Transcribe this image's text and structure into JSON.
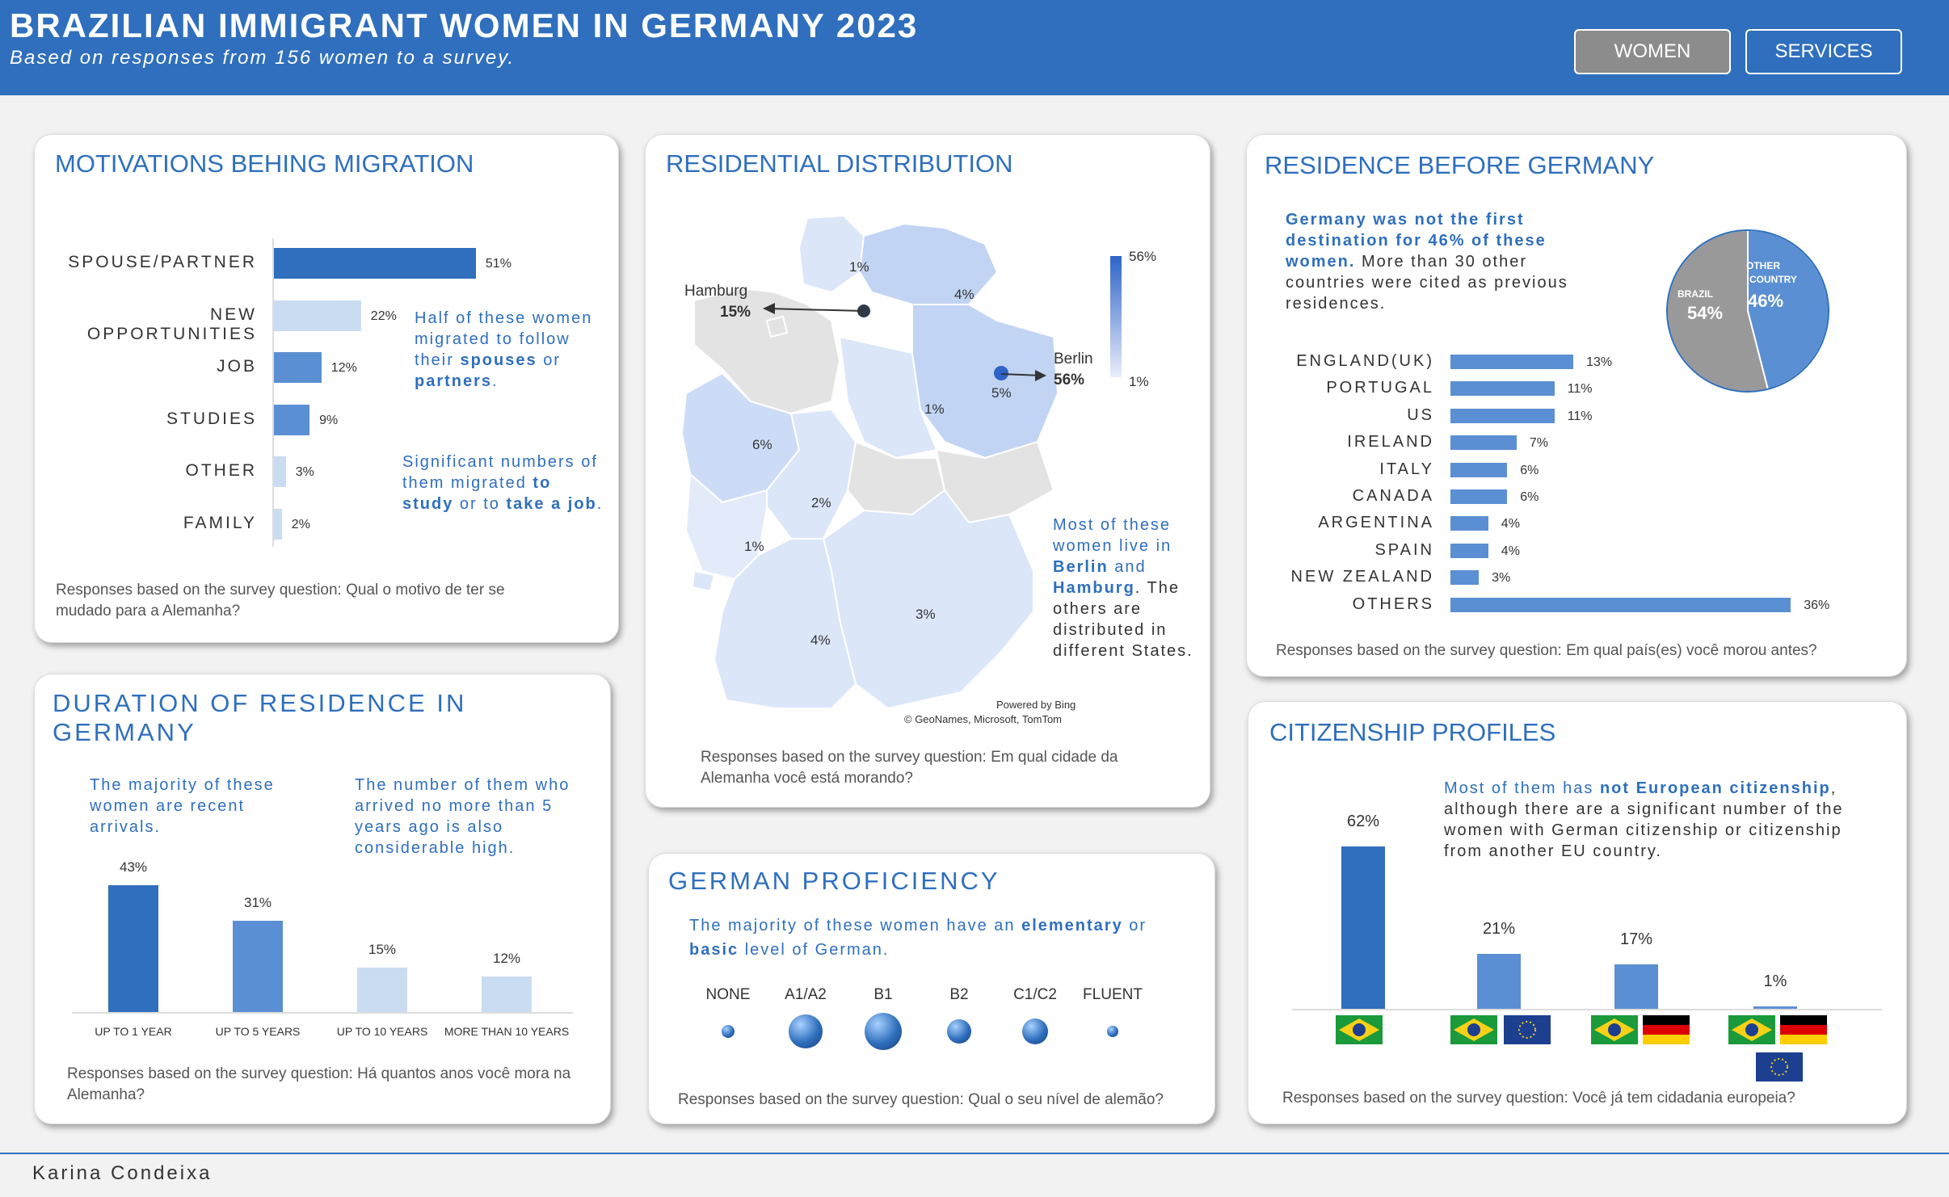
{
  "header": {
    "title": "BRAZILIAN IMMIGRANT WOMEN IN GERMANY 2023",
    "subtitle": "Based on responses from 156 women to a survey.",
    "buttons": {
      "women": "WOMEN",
      "services": "SERVICES"
    }
  },
  "motivations": {
    "title": "MOTIVATIONS BEHING MIGRATION",
    "note": "Responses based on the survey question: Qual o motivo de ter se mudado para a Alemanha?",
    "callout1": {
      "a": "Half of these women migrated to follow their",
      "b": "spouses",
      "c": "or",
      "d": "partners",
      "e": "."
    },
    "callout2": {
      "a": "Significant numbers of them migrated",
      "b": "to study",
      "c": "or to",
      "d": "take a job",
      "e": "."
    }
  },
  "residential": {
    "title": "RESIDENTIAL DISTRIBUTION",
    "note": "Responses based on the survey question: Em qual cidade da Alemanha você está morando?",
    "hamburg": "Hamburg",
    "hamburg_pct": "15%",
    "berlin": "Berlin",
    "berlin_pct": "56%",
    "state_pcts": [
      "1%",
      "4%",
      "5%",
      "1%",
      "6%",
      "2%",
      "1%",
      "3%",
      "4%"
    ],
    "legend_max": "56%",
    "legend_min": "1%",
    "credit1": "Powered by Bing",
    "credit2": "© GeoNames, Microsoft, TomTom",
    "callout": {
      "a": "Most of these women live in",
      "b": "Berlin",
      "c": "and",
      "d": "Hamburg",
      "e": ". The others are distributed in different States."
    }
  },
  "before": {
    "title": "RESIDENCE BEFORE GERMANY",
    "note": "Responses based on the survey question: Em qual país(es) você morou antes?",
    "callout": {
      "a": "Germany was not the first destination for 46% of these women.",
      "b": "More than 30 other countries were cited as previous residences."
    },
    "pie": {
      "brazil_label": "BRAZIL",
      "brazil_pct": "54%",
      "other_label1": "OTHER",
      "other_label2": "COUNTRY",
      "other_pct": "46%"
    }
  },
  "duration": {
    "title": "DURATION OF RESIDENCE IN GERMANY",
    "note": "Responses based on the survey question: Há quantos anos você mora na Alemanha?",
    "callout1": "The majority of these women are recent arrivals.",
    "callout2": "The number of them who arrived no more than 5 years ago is also considerable high."
  },
  "proficiency": {
    "title": "GERMAN PROFICIENCY",
    "note": "Responses based on the survey question: Qual o seu nível de alemão?",
    "callout": {
      "a": "The majority of these women have an",
      "b": "elementary",
      "c": "or",
      "d": "basic",
      "e": "level of German."
    },
    "levels": [
      {
        "label": "NONE",
        "size": 0.35
      },
      {
        "label": "A1/A2",
        "size": 0.9
      },
      {
        "label": "B1",
        "size": 1.0
      },
      {
        "label": "B2",
        "size": 0.65
      },
      {
        "label": "C1/C2",
        "size": 0.7
      },
      {
        "label": "FLUENT",
        "size": 0.3
      }
    ]
  },
  "citizenship": {
    "title": "CITIZENSHIP PROFILES",
    "note": "Responses based on the survey question: Você já tem cidadania europeia?",
    "callout": {
      "a": "Most of them has",
      "b": "not European citizenship",
      "c": ", although there are a significant number of the women with German citizenship or citizenship from another EU country."
    }
  },
  "footer": {
    "author": "Karina Condeixa"
  },
  "colors": {
    "dark": "#2f6fbd",
    "mid": "#5b8fd3",
    "light": "#c9dcf2",
    "pie_grey": "#999999"
  },
  "chart_data": [
    {
      "type": "bar",
      "orientation": "horizontal",
      "categories": [
        "SPOUSE/PARTNER",
        "NEW OPPORTUNITIES",
        "JOB",
        "STUDIES",
        "OTHER",
        "FAMILY"
      ],
      "values": [
        51,
        22,
        12,
        9,
        3,
        2
      ],
      "labels": [
        "51%",
        "22%",
        "12%",
        "9%",
        "3%",
        "2%"
      ]
    },
    {
      "type": "bar",
      "orientation": "horizontal",
      "categories": [
        "ENGLAND(UK)",
        "PORTUGAL",
        "US",
        "IRELAND",
        "ITALY",
        "CANADA",
        "ARGENTINA",
        "SPAIN",
        "NEW ZEALAND",
        "OTHERS"
      ],
      "values": [
        13,
        11,
        11,
        7,
        6,
        6,
        4,
        4,
        3,
        36
      ],
      "labels": [
        "13%",
        "11%",
        "11%",
        "7%",
        "6%",
        "6%",
        "4%",
        "4%",
        "3%",
        "36%"
      ]
    },
    {
      "type": "pie",
      "categories": [
        "BRAZIL",
        "OTHER COUNTRY"
      ],
      "values": [
        54,
        46
      ]
    },
    {
      "type": "bar",
      "categories": [
        "UP TO 1 YEAR",
        "UP TO 5 YEARS",
        "UP TO 10 YEARS",
        "MORE THAN 10 YEARS"
      ],
      "values": [
        43,
        31,
        15,
        12
      ],
      "labels": [
        "43%",
        "31%",
        "15%",
        "12%"
      ]
    },
    {
      "type": "bar",
      "categories": [
        "Brazil",
        "Brazil + EU",
        "Brazil + Germany",
        "Brazil + Germany + EU"
      ],
      "values": [
        62,
        21,
        17,
        1
      ],
      "labels": [
        "62%",
        "21%",
        "17%",
        "1%"
      ]
    }
  ]
}
